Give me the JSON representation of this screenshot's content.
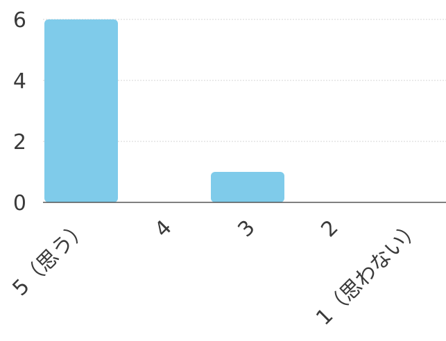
{
  "chart_data": {
    "type": "bar",
    "categories": [
      "5（思う）",
      "4",
      "3",
      "2",
      "1（思わない）"
    ],
    "values": [
      6,
      0,
      1,
      0,
      0
    ],
    "ylim": [
      0,
      6
    ],
    "yticks": [
      0,
      2,
      4,
      6
    ],
    "grid": true,
    "bar_color": "#7fcbea",
    "grid_color": "#d6d6d6",
    "axis_color": "#555555"
  }
}
